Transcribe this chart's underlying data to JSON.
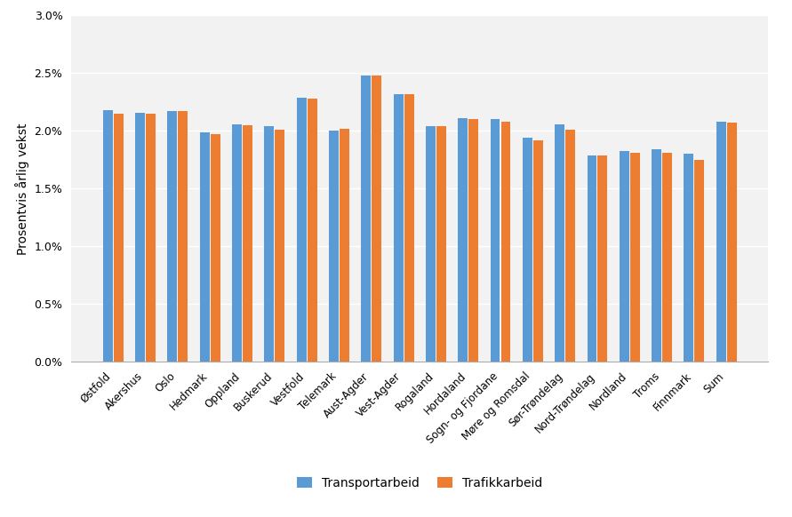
{
  "categories": [
    "Østfold",
    "Akershus",
    "Oslo",
    "Hedmark",
    "Oppland",
    "Buskerud",
    "Vestfold",
    "Telemark",
    "Aust-Agder",
    "Vest-Agder",
    "Rogaland",
    "Hordaland",
    "Sogn- og Fjordane",
    "Møre og Romsdal",
    "Sør-Trøndelag",
    "Nord-Trøndelag",
    "Nordland",
    "Troms",
    "Finnmark",
    "Sum"
  ],
  "transportarbeid": [
    0.0218,
    0.0216,
    0.0217,
    0.0199,
    0.0206,
    0.0204,
    0.0229,
    0.02,
    0.0248,
    0.0232,
    0.0204,
    0.0211,
    0.021,
    0.0194,
    0.0206,
    0.0179,
    0.0183,
    0.0184,
    0.018,
    0.0208
  ],
  "trafikkarbeid": [
    0.0215,
    0.0215,
    0.0217,
    0.0197,
    0.0205,
    0.0201,
    0.0228,
    0.0202,
    0.0248,
    0.0232,
    0.0204,
    0.021,
    0.0208,
    0.0192,
    0.0201,
    0.0179,
    0.0181,
    0.0181,
    0.0175,
    0.0207
  ],
  "bar_color_transport": "#5B9BD5",
  "bar_color_traffic": "#ED7D31",
  "ylabel": "Prosentvis årlig vekst",
  "legend_transport": "Transportarbeid",
  "legend_traffic": "Trafikkarbeid",
  "ylim": [
    0.0,
    0.03
  ],
  "yticks": [
    0.0,
    0.005,
    0.01,
    0.015,
    0.02,
    0.025,
    0.03
  ],
  "background_color": "#FFFFFF",
  "plot_bg_color": "#F2F2F2",
  "grid_color": "#FFFFFF"
}
